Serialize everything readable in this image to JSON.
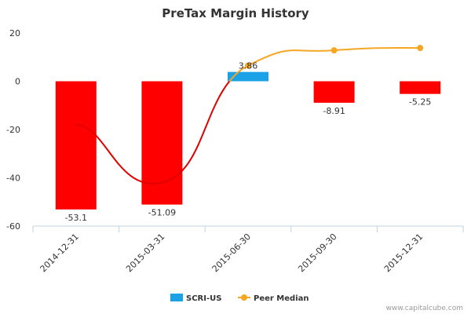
{
  "chart_data": {
    "type": "bar",
    "title": "PreTax Margin History",
    "xlabel": "",
    "ylabel": "",
    "categories": [
      "2014-12-31",
      "2015-03-31",
      "2015-06-30",
      "2015-09-30",
      "2015-12-31"
    ],
    "ylim": [
      -60,
      20
    ],
    "yticks": [
      20,
      0,
      -20,
      -40,
      -60
    ],
    "grid": false,
    "legend_position": "bottom",
    "series": [
      {
        "name": "SCRI-US",
        "type": "bar",
        "values": [
          -53.1,
          -51.09,
          3.86,
          -8.91,
          -5.25
        ],
        "labels": [
          "-53.1",
          "-51.09",
          "3.86",
          "-8.91",
          "-5.25"
        ],
        "color": "#ff0000",
        "positive_color": "#1aa1e6",
        "legend_color": "#1aa1e6"
      },
      {
        "name": "Peer Median",
        "type": "line",
        "values": [
          -18,
          -42,
          6.5,
          12.8,
          13.8
        ],
        "line_color_negative": "#e00000",
        "line_color_positive": "#f5a623",
        "marker_color": "#f5a623",
        "markers_visible": [
          false,
          false,
          true,
          true,
          true
        ]
      }
    ]
  },
  "credit": "www.capitalcube.com"
}
